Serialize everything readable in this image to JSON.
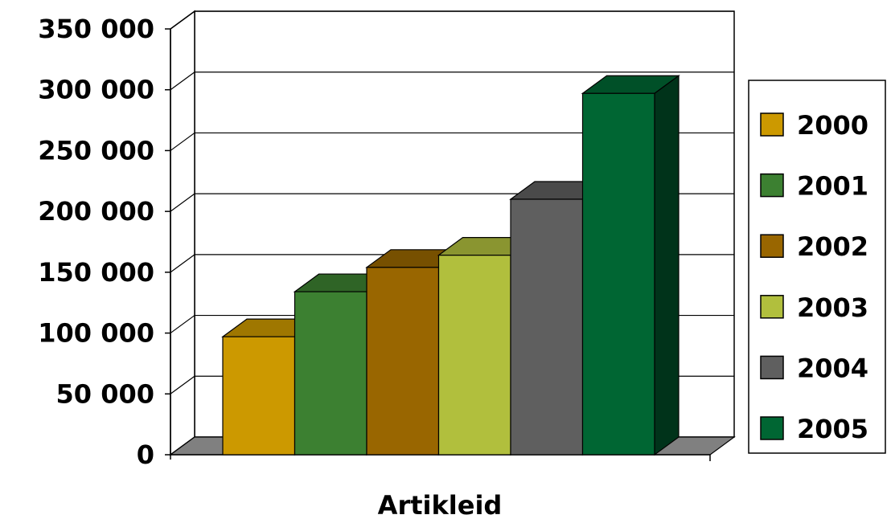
{
  "chart_data": {
    "type": "bar",
    "categories": [
      ""
    ],
    "series": [
      {
        "name": "2000",
        "values": [
          97000
        ],
        "color": "#cc9900"
      },
      {
        "name": "2001",
        "values": [
          134000
        ],
        "color": "#3c8031"
      },
      {
        "name": "2002",
        "values": [
          154000
        ],
        "color": "#996600"
      },
      {
        "name": "2003",
        "values": [
          164000
        ],
        "color": "#b1bf3d"
      },
      {
        "name": "2004",
        "values": [
          210000
        ],
        "color": "#5f5f5f"
      },
      {
        "name": "2005",
        "values": [
          297000
        ],
        "color": "#006633"
      }
    ],
    "title": "",
    "xlabel": "Artikleid",
    "ylabel": "",
    "ylim": [
      0,
      350000
    ],
    "y_ticks": [
      {
        "value": 0,
        "label": "0"
      },
      {
        "value": 50000,
        "label": "50 000"
      },
      {
        "value": 100000,
        "label": "100 000"
      },
      {
        "value": 150000,
        "label": "150 000"
      },
      {
        "value": 200000,
        "label": "200 000"
      },
      {
        "value": 250000,
        "label": "250 000"
      },
      {
        "value": 300000,
        "label": "300 000"
      },
      {
        "value": 350000,
        "label": "350 000"
      }
    ],
    "grid": true,
    "legend": "right",
    "style": "3d-column",
    "floor_color": "#808080"
  }
}
